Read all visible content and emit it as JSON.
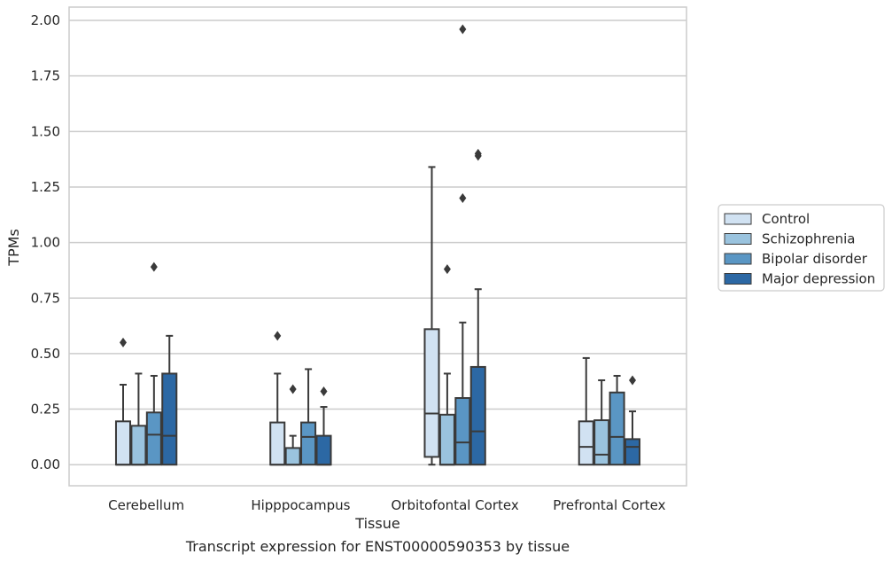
{
  "caption": "Transcript expression for ENST00000590353 by tissue",
  "chart_data": {
    "type": "box",
    "xlabel": "Tissue",
    "ylabel": "TPMs",
    "ylim": [
      -0.095,
      2.06
    ],
    "yticks": [
      "0.00",
      "0.25",
      "0.50",
      "0.75",
      "1.00",
      "1.25",
      "1.50",
      "1.75",
      "2.00"
    ],
    "grid": "horizontal",
    "legend_position": "right",
    "categories": [
      "Cerebellum",
      "Hipppocampus",
      "Orbitofontal Cortex",
      "Prefrontal Cortex"
    ],
    "series": [
      {
        "name": "Control",
        "color": "#d1e2f2",
        "boxes": [
          {
            "min": 0.0,
            "q1": 0.0,
            "median": 0.0,
            "q3": 0.195,
            "max": 0.36,
            "outliers": [
              0.55
            ]
          },
          {
            "min": 0.0,
            "q1": 0.0,
            "median": 0.0,
            "q3": 0.19,
            "max": 0.41,
            "outliers": [
              0.58
            ]
          },
          {
            "min": 0.0,
            "q1": 0.035,
            "median": 0.23,
            "q3": 0.61,
            "max": 1.34,
            "outliers": []
          },
          {
            "min": 0.0,
            "q1": 0.0,
            "median": 0.08,
            "q3": 0.195,
            "max": 0.48,
            "outliers": []
          }
        ]
      },
      {
        "name": "Schizophrenia",
        "color": "#9ac3de",
        "boxes": [
          {
            "min": 0.0,
            "q1": 0.0,
            "median": 0.0,
            "q3": 0.175,
            "max": 0.41,
            "outliers": []
          },
          {
            "min": 0.0,
            "q1": 0.0,
            "median": 0.0,
            "q3": 0.075,
            "max": 0.13,
            "outliers": [
              0.34
            ]
          },
          {
            "min": 0.0,
            "q1": 0.0,
            "median": 0.0,
            "q3": 0.225,
            "max": 0.41,
            "outliers": [
              0.88
            ]
          },
          {
            "min": 0.0,
            "q1": 0.0,
            "median": 0.045,
            "q3": 0.2,
            "max": 0.38,
            "outliers": []
          }
        ]
      },
      {
        "name": "Bipolar disorder",
        "color": "#5a96c4",
        "boxes": [
          {
            "min": 0.0,
            "q1": 0.0,
            "median": 0.135,
            "q3": 0.235,
            "max": 0.4,
            "outliers": [
              0.89
            ]
          },
          {
            "min": 0.0,
            "q1": 0.0,
            "median": 0.125,
            "q3": 0.19,
            "max": 0.43,
            "outliers": []
          },
          {
            "min": 0.0,
            "q1": 0.0,
            "median": 0.1,
            "q3": 0.3,
            "max": 0.64,
            "outliers": [
              1.2,
              1.96
            ]
          },
          {
            "min": 0.0,
            "q1": 0.0,
            "median": 0.125,
            "q3": 0.325,
            "max": 0.4,
            "outliers": []
          }
        ]
      },
      {
        "name": "Major depression",
        "color": "#2c68a4",
        "boxes": [
          {
            "min": 0.0,
            "q1": 0.0,
            "median": 0.13,
            "q3": 0.41,
            "max": 0.58,
            "outliers": []
          },
          {
            "min": 0.0,
            "q1": 0.0,
            "median": 0.0,
            "q3": 0.13,
            "max": 0.26,
            "outliers": [
              0.33
            ]
          },
          {
            "min": 0.0,
            "q1": 0.0,
            "median": 0.15,
            "q3": 0.44,
            "max": 0.79,
            "outliers": [
              1.39,
              1.4
            ]
          },
          {
            "min": 0.0,
            "q1": 0.0,
            "median": 0.08,
            "q3": 0.115,
            "max": 0.24,
            "outliers": [
              0.38
            ]
          }
        ]
      }
    ]
  }
}
